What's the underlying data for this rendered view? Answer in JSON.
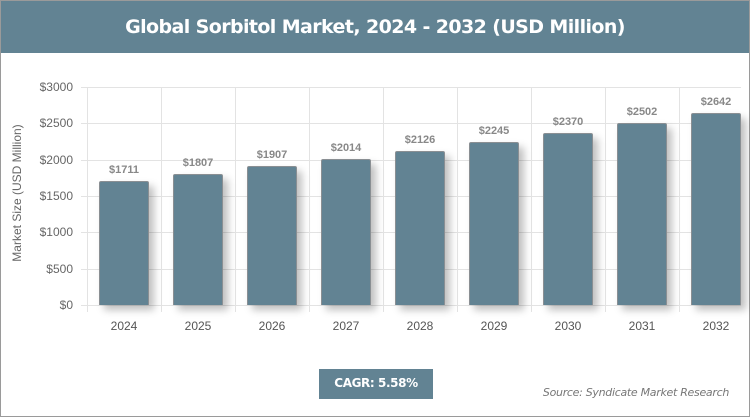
{
  "header": {
    "title": "Global Sorbitol Market, 2024 - 2032 (USD Million)"
  },
  "footer": {
    "cagr_label": "CAGR: 5.58%",
    "source": "Source: Syndicate Market Research"
  },
  "colors": {
    "bar": "#628393",
    "header": "#628393"
  },
  "chart_data": {
    "type": "bar",
    "title": "Global Sorbitol Market, 2024 - 2032 (USD Million)",
    "xlabel": "",
    "ylabel": "Market Size (USD Million)",
    "categories": [
      "2024",
      "2025",
      "2026",
      "2027",
      "2028",
      "2029",
      "2030",
      "2031",
      "2032"
    ],
    "values": [
      1711,
      1807,
      1907,
      2014,
      2126,
      2245,
      2370,
      2502,
      2642
    ],
    "value_labels": [
      "$1711",
      "$1807",
      "$1907",
      "$2014",
      "$2126",
      "$2245",
      "$2370",
      "$2502",
      "$2642"
    ],
    "yticks": [
      "$0",
      "$500",
      "$1000",
      "$1500",
      "$2000",
      "$2500",
      "$3000"
    ],
    "ylim": [
      0,
      3000
    ],
    "grid": true,
    "legend": "none",
    "annotation": "CAGR: 5.58%"
  }
}
